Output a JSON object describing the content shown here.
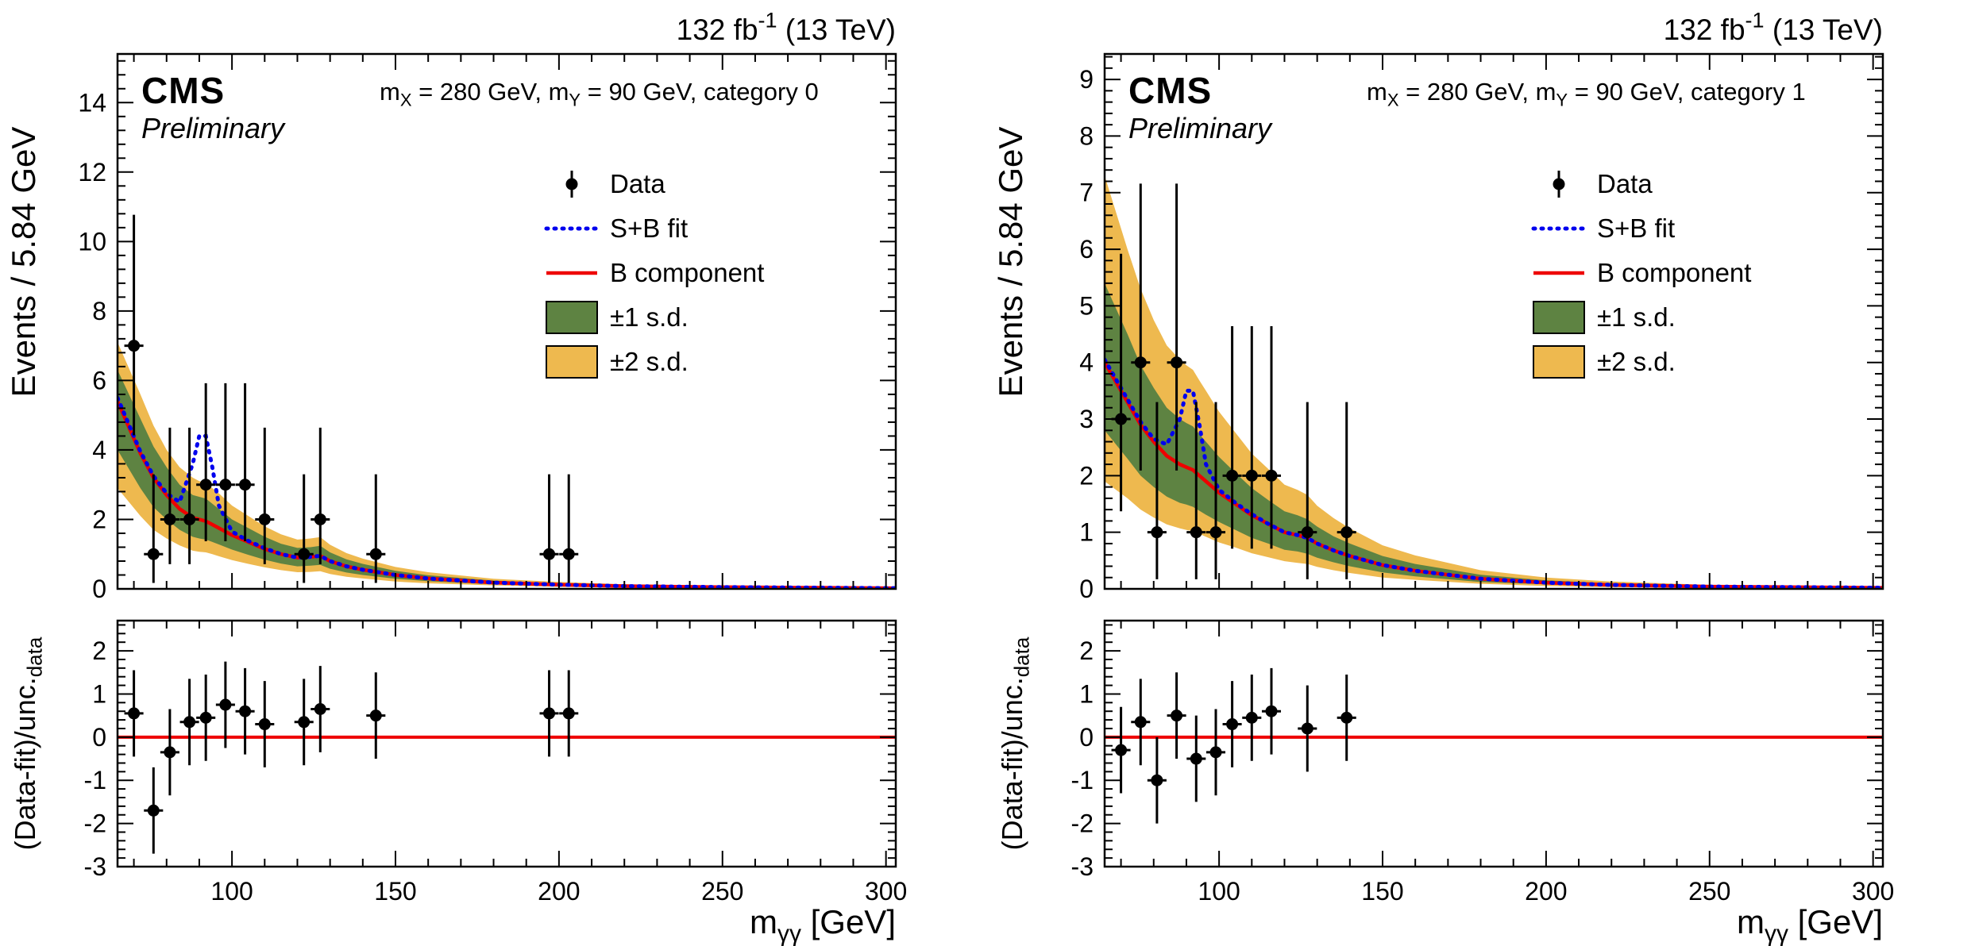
{
  "page": {
    "background": "#ffffff"
  },
  "colors": {
    "band_1sd": "#5e8342",
    "band_2sd": "#eeb94f",
    "sb_fit": "#0000ee",
    "b_component": "#ee0000",
    "data_marker": "#000000",
    "ratio_zero_line": "#ee0000"
  },
  "chart_data": [
    {
      "type": "line",
      "subtype": "data-points + S+B fit + B component + uncertainty bands + pull panel",
      "panel": "category-0",
      "lumi_parts": [
        {
          "t": "132 fb"
        },
        {
          "sup": "-1"
        },
        {
          "t": " (13 TeV)"
        }
      ],
      "experiment": "CMS",
      "experiment_label": "Preliminary",
      "category_parts": [
        {
          "t": "m"
        },
        {
          "sub": "X"
        },
        {
          "t": " = 280 GeV, m"
        },
        {
          "sub": "Y"
        },
        {
          "t": " = 90 GeV, category 0"
        }
      ],
      "ylabel": "Events / 5.84 GeV",
      "xlabel_parts": [
        {
          "t": "m"
        },
        {
          "sub": "γγ"
        },
        {
          "t": " [GeV]"
        }
      ],
      "ratio_ylabel_parts": [
        {
          "t": "(Data-fit)/unc."
        },
        {
          "sub": "data"
        }
      ],
      "xlim": [
        65,
        303
      ],
      "ylim": [
        0,
        15.4
      ],
      "yticks": [
        0,
        2,
        4,
        6,
        8,
        10,
        12,
        14
      ],
      "y_minor_step": 0.4,
      "xticks": [
        100,
        150,
        200,
        250,
        300
      ],
      "x_minor_step": 10,
      "ratio_ylim": [
        -3,
        2.7
      ],
      "ratio_yticks": [
        -3,
        -2,
        -1,
        0,
        1,
        2
      ],
      "ratio_y_minor_step": 0.2,
      "legend": [
        {
          "label": "Data",
          "style": "marker"
        },
        {
          "label": "S+B fit",
          "style": "dashed",
          "color": "#0000ee"
        },
        {
          "label": "B component",
          "style": "line",
          "color": "#ee0000"
        },
        {
          "label": "±1 s.d.",
          "style": "band",
          "color": "#5e8342"
        },
        {
          "label": "±2 s.d.",
          "style": "band",
          "color": "#eeb94f"
        }
      ],
      "curves": {
        "x": [
          65,
          72,
          76,
          80,
          84,
          88,
          90,
          92,
          94,
          96,
          100,
          105,
          110,
          115,
          120,
          124,
          127,
          130,
          135,
          140,
          150,
          160,
          180,
          200,
          220,
          250,
          303
        ],
        "b": [
          5.4,
          3.9,
          3.2,
          2.7,
          2.3,
          2.05,
          2.0,
          1.95,
          1.85,
          1.75,
          1.55,
          1.35,
          1.15,
          1.0,
          0.9,
          0.92,
          0.95,
          0.8,
          0.65,
          0.55,
          0.4,
          0.3,
          0.18,
          0.12,
          0.08,
          0.05,
          0.02
        ],
        "sb": [
          5.5,
          3.95,
          3.25,
          2.75,
          2.5,
          3.6,
          4.4,
          4.4,
          3.5,
          2.4,
          1.65,
          1.38,
          1.17,
          1.0,
          0.9,
          0.92,
          0.95,
          0.8,
          0.65,
          0.55,
          0.4,
          0.3,
          0.18,
          0.12,
          0.08,
          0.05,
          0.02
        ],
        "band1_hi": [
          6.3,
          4.9,
          4.1,
          3.5,
          3.0,
          2.7,
          2.65,
          2.6,
          2.45,
          2.3,
          2.0,
          1.75,
          1.5,
          1.3,
          1.18,
          1.2,
          1.24,
          1.05,
          0.85,
          0.72,
          0.52,
          0.39,
          0.24,
          0.16,
          0.11,
          0.07,
          0.03
        ],
        "band1_lo": [
          4.0,
          2.9,
          2.35,
          2.0,
          1.7,
          1.5,
          1.45,
          1.42,
          1.35,
          1.28,
          1.13,
          0.98,
          0.84,
          0.73,
          0.65,
          0.67,
          0.69,
          0.58,
          0.47,
          0.4,
          0.29,
          0.22,
          0.13,
          0.09,
          0.06,
          0.04,
          0.01
        ],
        "band2_hi": [
          7.1,
          5.6,
          4.7,
          4.0,
          3.5,
          3.2,
          3.1,
          3.05,
          2.9,
          2.75,
          2.4,
          2.1,
          1.8,
          1.57,
          1.42,
          1.45,
          1.49,
          1.27,
          1.03,
          0.87,
          0.63,
          0.48,
          0.29,
          0.2,
          0.13,
          0.08,
          0.04
        ],
        "band2_lo": [
          2.9,
          2.1,
          1.7,
          1.45,
          1.25,
          1.1,
          1.07,
          1.05,
          1.0,
          0.94,
          0.83,
          0.72,
          0.62,
          0.54,
          0.48,
          0.49,
          0.51,
          0.43,
          0.35,
          0.3,
          0.21,
          0.16,
          0.1,
          0.06,
          0.04,
          0.03,
          0.01
        ]
      },
      "data_points": {
        "x": [
          70,
          76,
          81,
          87,
          92,
          98,
          104,
          110,
          122,
          127,
          144,
          197,
          203
        ],
        "y": [
          7,
          1,
          2,
          2,
          3,
          3,
          3,
          2,
          1,
          2,
          1,
          1,
          1
        ],
        "err_hi": [
          3.77,
          2.3,
          2.64,
          2.64,
          2.92,
          2.92,
          2.92,
          2.64,
          2.3,
          2.64,
          2.3,
          2.3,
          2.3
        ],
        "err_lo": [
          2.58,
          0.83,
          1.29,
          1.29,
          1.63,
          1.63,
          1.63,
          1.29,
          0.83,
          1.29,
          0.83,
          0.83,
          0.83
        ],
        "xerr": 2.92
      },
      "ratio_points": {
        "x": [
          70,
          76,
          81,
          87,
          92,
          98,
          104,
          110,
          122,
          127,
          144,
          197,
          203
        ],
        "y": [
          0.55,
          -1.7,
          -0.35,
          0.35,
          0.45,
          0.75,
          0.6,
          0.3,
          0.35,
          0.65,
          0.5,
          0.55,
          0.55
        ],
        "err": 1.0,
        "xerr": 2.92
      }
    },
    {
      "type": "line",
      "subtype": "data-points + S+B fit + B component + uncertainty bands + pull panel",
      "panel": "category-1",
      "lumi_parts": [
        {
          "t": "132 fb"
        },
        {
          "sup": "-1"
        },
        {
          "t": " (13 TeV)"
        }
      ],
      "experiment": "CMS",
      "experiment_label": "Preliminary",
      "category_parts": [
        {
          "t": "m"
        },
        {
          "sub": "X"
        },
        {
          "t": " = 280 GeV, m"
        },
        {
          "sub": "Y"
        },
        {
          "t": " = 90 GeV, category 1"
        }
      ],
      "ylabel": "Events / 5.84 GeV",
      "xlabel_parts": [
        {
          "t": "m"
        },
        {
          "sub": "γγ"
        },
        {
          "t": " [GeV]"
        }
      ],
      "ratio_ylabel_parts": [
        {
          "t": "(Data-fit)/unc."
        },
        {
          "sub": "data"
        }
      ],
      "xlim": [
        65,
        303
      ],
      "ylim": [
        0,
        9.45
      ],
      "yticks": [
        0,
        1,
        2,
        3,
        4,
        5,
        6,
        7,
        8,
        9
      ],
      "y_minor_step": 0.2,
      "xticks": [
        100,
        150,
        200,
        250,
        300
      ],
      "x_minor_step": 10,
      "ratio_ylim": [
        -3,
        2.7
      ],
      "ratio_yticks": [
        -3,
        -2,
        -1,
        0,
        1,
        2
      ],
      "ratio_y_minor_step": 0.2,
      "legend": [
        {
          "label": "Data",
          "style": "marker"
        },
        {
          "label": "S+B fit",
          "style": "dashed",
          "color": "#0000ee"
        },
        {
          "label": "B component",
          "style": "line",
          "color": "#ee0000"
        },
        {
          "label": "±1 s.d.",
          "style": "band",
          "color": "#5e8342"
        },
        {
          "label": "±2 s.d.",
          "style": "band",
          "color": "#eeb94f"
        }
      ],
      "curves": {
        "x": [
          65,
          72,
          76,
          80,
          84,
          88,
          90,
          92,
          94,
          96,
          100,
          105,
          110,
          115,
          120,
          124,
          127,
          130,
          135,
          140,
          150,
          160,
          180,
          200,
          220,
          250,
          303
        ],
        "b": [
          4.0,
          3.3,
          2.9,
          2.6,
          2.35,
          2.2,
          2.15,
          2.1,
          2.0,
          1.9,
          1.7,
          1.5,
          1.3,
          1.15,
          1.0,
          0.95,
          0.9,
          0.8,
          0.68,
          0.58,
          0.42,
          0.32,
          0.18,
          0.11,
          0.07,
          0.04,
          0.02
        ],
        "sb": [
          4.05,
          3.35,
          2.95,
          2.65,
          2.55,
          3.0,
          3.5,
          3.5,
          2.9,
          2.2,
          1.75,
          1.52,
          1.32,
          1.15,
          1.0,
          0.95,
          0.9,
          0.8,
          0.68,
          0.58,
          0.42,
          0.32,
          0.18,
          0.11,
          0.07,
          0.04,
          0.02
        ],
        "band1_hi": [
          5.4,
          4.5,
          3.95,
          3.55,
          3.2,
          3.0,
          2.93,
          2.87,
          2.73,
          2.6,
          2.33,
          2.05,
          1.78,
          1.57,
          1.37,
          1.3,
          1.23,
          1.1,
          0.93,
          0.8,
          0.58,
          0.44,
          0.25,
          0.15,
          0.1,
          0.06,
          0.03
        ],
        "band1_lo": [
          2.8,
          2.3,
          2.0,
          1.8,
          1.63,
          1.52,
          1.49,
          1.45,
          1.38,
          1.31,
          1.18,
          1.04,
          0.9,
          0.8,
          0.69,
          0.66,
          0.62,
          0.55,
          0.47,
          0.4,
          0.29,
          0.22,
          0.12,
          0.08,
          0.05,
          0.03,
          0.01
        ],
        "band2_hi": [
          7.3,
          6.0,
          5.3,
          4.75,
          4.3,
          4.05,
          3.95,
          3.87,
          3.68,
          3.5,
          3.13,
          2.76,
          2.39,
          2.12,
          1.84,
          1.75,
          1.66,
          1.47,
          1.25,
          1.07,
          0.77,
          0.59,
          0.33,
          0.2,
          0.13,
          0.07,
          0.04
        ],
        "band2_lo": [
          1.9,
          1.6,
          1.4,
          1.26,
          1.14,
          1.07,
          1.04,
          1.02,
          0.97,
          0.92,
          0.82,
          0.73,
          0.63,
          0.56,
          0.49,
          0.46,
          0.44,
          0.39,
          0.33,
          0.28,
          0.2,
          0.16,
          0.09,
          0.05,
          0.03,
          0.02,
          0.01
        ]
      },
      "data_points": {
        "x": [
          70,
          76,
          81,
          87,
          93,
          99,
          104,
          110,
          116,
          127,
          139
        ],
        "y": [
          3,
          4,
          1,
          4,
          1,
          1,
          2,
          2,
          2,
          1,
          1
        ],
        "err_hi": [
          2.92,
          3.16,
          2.3,
          3.16,
          2.3,
          2.3,
          2.64,
          2.64,
          2.64,
          2.3,
          2.3
        ],
        "err_lo": [
          1.63,
          1.91,
          0.83,
          1.91,
          0.83,
          0.83,
          1.29,
          1.29,
          1.29,
          0.83,
          0.83
        ],
        "xerr": 2.92
      },
      "ratio_points": {
        "x": [
          70,
          76,
          81,
          87,
          93,
          99,
          104,
          110,
          116,
          127,
          139
        ],
        "y": [
          -0.3,
          0.35,
          -1.0,
          0.5,
          -0.5,
          -0.35,
          0.3,
          0.45,
          0.6,
          0.2,
          0.45
        ],
        "err": 1.0,
        "xerr": 2.92
      }
    }
  ]
}
